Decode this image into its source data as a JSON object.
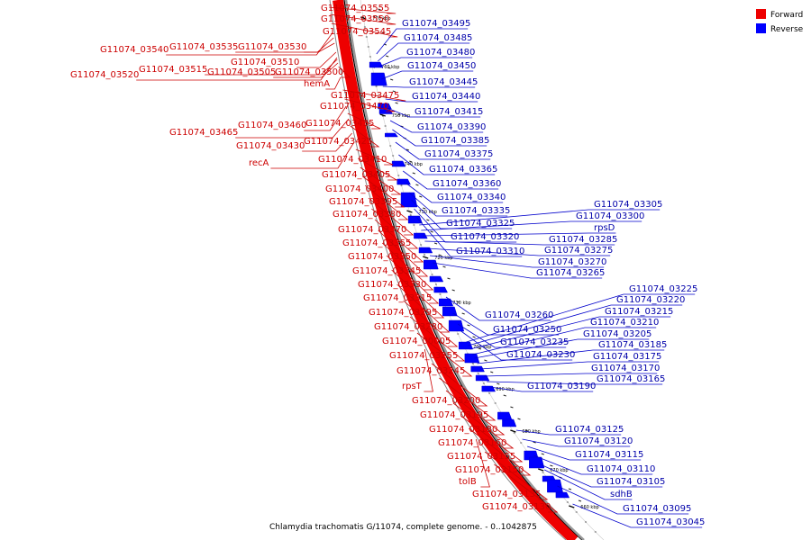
{
  "caption": "Chlamydia trachomatis G/11074, complete genome. - 0..1042875",
  "legend": [
    {
      "label": "Forward",
      "color": "#ee0000"
    },
    {
      "label": "Reverse",
      "color": "#0000ff"
    }
  ],
  "ticks": [
    "770 kbp",
    "760 kbp",
    "750 kbp",
    "740 kbp",
    "730 kbp",
    "720 kbp",
    "710 kbp",
    "700 kbp",
    "690 kbp",
    "680 kbp",
    "670 kbp",
    "660 kbp"
  ],
  "forward_labels": [
    "G11074_03555",
    "G11074_03550",
    "G11074_03545",
    "G11074_03540",
    "G11074_03535",
    "G11074_03530",
    "G11074_03510",
    "G11074_03520",
    "G11074_03515",
    "G11074_03505",
    "G11074_03500",
    "hemA",
    "G11074_03475",
    "G11074_03470",
    "G11074_03460",
    "G11074_03435",
    "G11074_03465",
    "G11074_03425",
    "G11074_03430",
    "recA",
    "G11074_03410",
    "G11074_03405",
    "G11074_03400",
    "G11074_03395",
    "G11074_03380",
    "G11074_03370",
    "G11074_03355",
    "G11074_03350",
    "G11074_03345",
    "G11074_03330",
    "G11074_03315",
    "G11074_03295",
    "G11074_03280",
    "G11074_00005",
    "G11074_03255",
    "G11074_03245",
    "rpsT",
    "G11074_03200",
    "G11074_03195",
    "G11074_03180",
    "G11074_03160",
    "G11074_03155",
    "G11074_03150",
    "tolB",
    "G11074_03135",
    "G11074_03130"
  ],
  "reverse_labels": [
    "G11074_03495",
    "G11074_03485",
    "G11074_03480",
    "G11074_03450",
    "G11074_03445",
    "G11074_03440",
    "G11074_03415",
    "G11074_03390",
    "G11074_03385",
    "G11074_03375",
    "G11074_03365",
    "G11074_03360",
    "G11074_03340",
    "G11074_03335",
    "G11074_03325",
    "G11074_03320",
    "G11074_03310",
    "G11074_03305",
    "G11074_03300",
    "rpsD",
    "G11074_03285",
    "G11074_03275",
    "G11074_03270",
    "G11074_03265",
    "G11074_03260",
    "G11074_03250",
    "G11074_03235",
    "G11074_03230",
    "G11074_03225",
    "G11074_03220",
    "G11074_03215",
    "G11074_03210",
    "G11074_03205",
    "G11074_03185",
    "G11074_03175",
    "G11074_03170",
    "G11074_03165",
    "G11074_03190",
    "G11074_03125",
    "G11074_03120",
    "G11074_03115",
    "G11074_03110",
    "G11074_03105",
    "sdhB",
    "G11074_03095",
    "G11074_03045"
  ]
}
